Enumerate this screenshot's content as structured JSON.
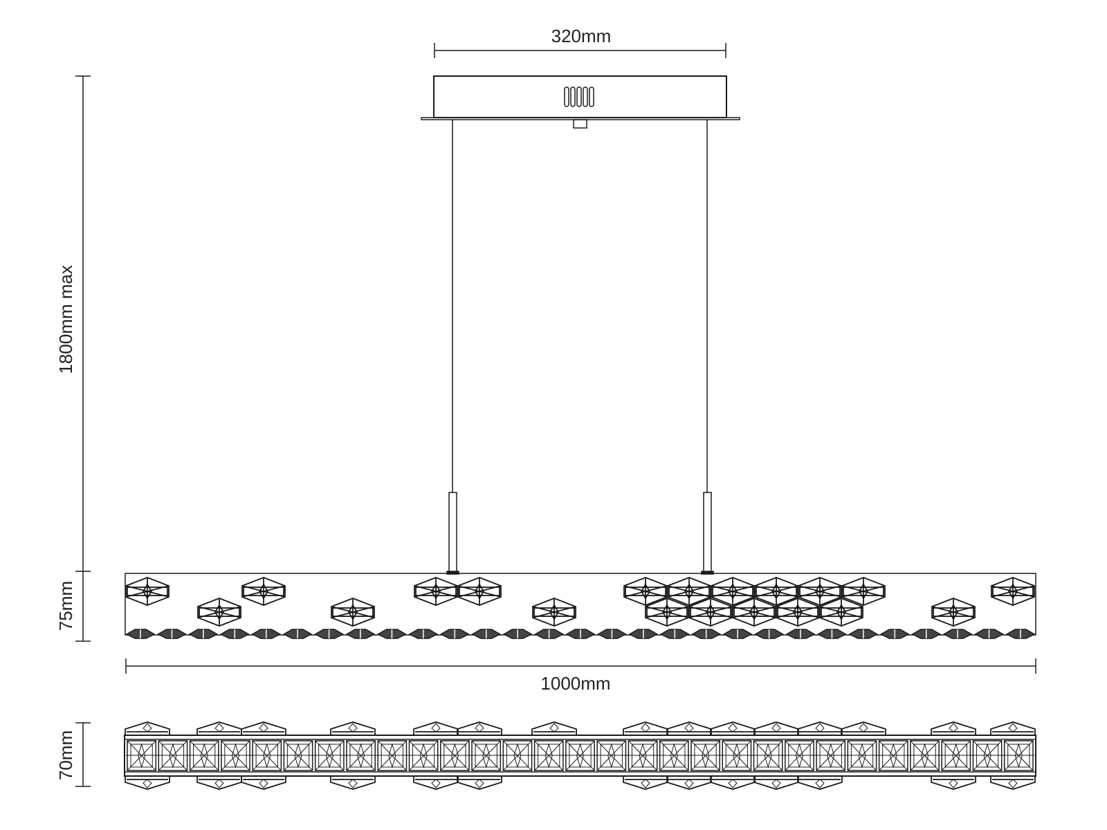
{
  "dimensions": {
    "canopy_width": "320mm",
    "max_height": "1800mm max",
    "body_height": "75mm",
    "length": "1000mm",
    "depth": "70mm"
  },
  "colors": {
    "line": "#1a1a1a",
    "background": "#ffffff"
  },
  "crystal_count_bottom_row": 29,
  "crystal_count_plan_squares": 29
}
